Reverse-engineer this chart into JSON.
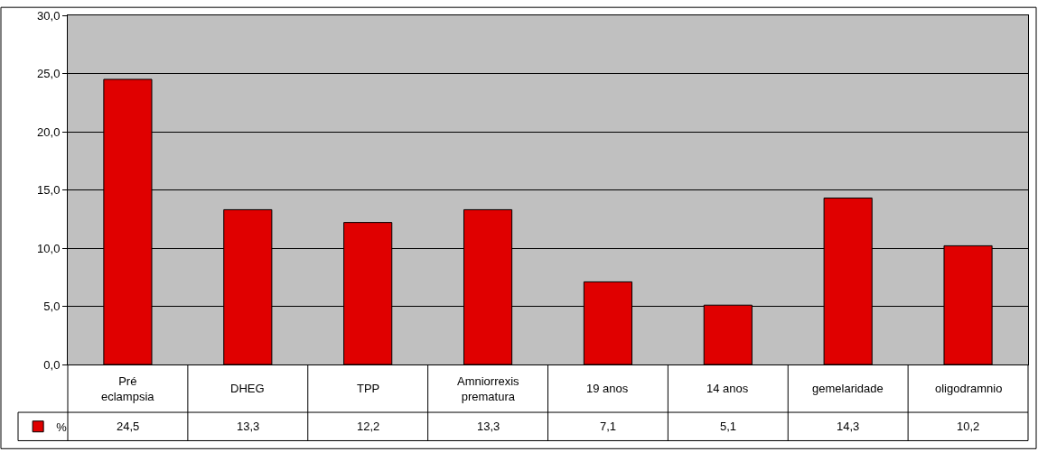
{
  "chart_data": {
    "type": "bar",
    "categories": [
      "Pré eclampsia",
      "DHEG",
      "TPP",
      "Amniorrexis prematura",
      "19 anos",
      "14 anos",
      "gemelaridade",
      "oligodramnio"
    ],
    "series": [
      {
        "name": "%",
        "color": "#e00000",
        "values": [
          24.5,
          13.3,
          12.2,
          13.3,
          7.1,
          5.1,
          14.3,
          10.2
        ],
        "value_labels": [
          "24,5",
          "13,3",
          "12,2",
          "13,3",
          "7,1",
          "5,1",
          "14,3",
          "10,2"
        ]
      }
    ],
    "ylim": [
      0,
      30
    ],
    "yticks": [
      {
        "value": 0,
        "label": "0,0"
      },
      {
        "value": 5,
        "label": "5,0"
      },
      {
        "value": 10,
        "label": "10,0"
      },
      {
        "value": 15,
        "label": "15,0"
      },
      {
        "value": 20,
        "label": "20,0"
      },
      {
        "value": 25,
        "label": "25,0"
      },
      {
        "value": 30,
        "label": "30,0"
      }
    ],
    "grid": "y",
    "legend": "bottom left"
  }
}
